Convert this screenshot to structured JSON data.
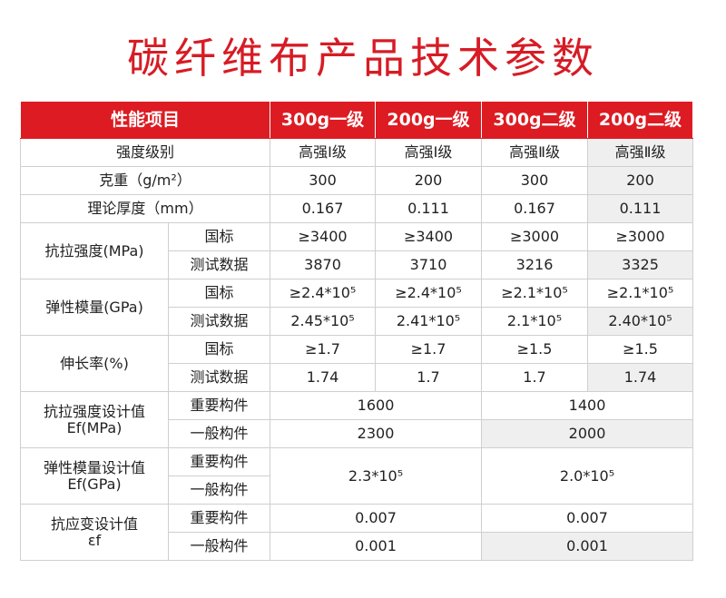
{
  "title": "碳纤维布产品技术参数",
  "header": {
    "item": "性能项目",
    "cols": [
      "300g一级",
      "200g一级",
      "300g二级",
      "200g二级"
    ]
  },
  "rows": {
    "grade": {
      "label": "强度级别",
      "values": [
        "高强Ⅰ级",
        "高强Ⅰ级",
        "高强Ⅱ级",
        "高强Ⅱ级"
      ]
    },
    "weight": {
      "label": "克重（g/m²）",
      "values": [
        "300",
        "200",
        "300",
        "200"
      ]
    },
    "thickness": {
      "label": "理论厚度（mm）",
      "values": [
        "0.167",
        "0.111",
        "0.167",
        "0.111"
      ]
    },
    "tensile": {
      "label": "抗拉强度(MPa)",
      "std_label": "国标",
      "std": [
        "≥3400",
        "≥3400",
        "≥3000",
        "≥3000"
      ],
      "test_label": "测试数据",
      "test": [
        "3870",
        "3710",
        "3216",
        "3325"
      ]
    },
    "modulus": {
      "label": "弹性模量(GPa)",
      "std_label": "国标",
      "std": [
        "≥2.4*10⁵",
        "≥2.4*10⁵",
        "≥2.1*10⁵",
        "≥2.1*10⁵"
      ],
      "test_label": "测试数据",
      "test": [
        "2.45*10⁵",
        "2.41*10⁵",
        "2.1*10⁵",
        "2.40*10⁵"
      ]
    },
    "elongation": {
      "label": "伸长率(%)",
      "std_label": "国标",
      "std": [
        "≥1.7",
        "≥1.7",
        "≥1.5",
        "≥1.5"
      ],
      "test_label": "测试数据",
      "test": [
        "1.74",
        "1.7",
        "1.7",
        "1.74"
      ]
    },
    "tensile_design": {
      "label_line1": "抗拉强度设计值",
      "label_line2": "Ef(MPa)",
      "important_label": "重要构件",
      "important": [
        "1600",
        "1400"
      ],
      "general_label": "一般构件",
      "general": [
        "2300",
        "2000"
      ]
    },
    "modulus_design": {
      "label_line1": "弹性模量设计值",
      "label_line2": "Ef(GPa)",
      "important_label": "重要构件",
      "general_label": "一般构件",
      "values": [
        "2.3*10⁵",
        "2.0*10⁵"
      ]
    },
    "strain_design": {
      "label_line1": "抗应变设计值",
      "label_line2": "εf",
      "important_label": "重要构件",
      "important": [
        "0.007",
        "0.007"
      ],
      "general_label": "一般构件",
      "general": [
        "0.001",
        "0.001"
      ]
    }
  },
  "colors": {
    "accent": "#dd1b22",
    "title": "#d61c25",
    "shade": "#efefef",
    "border": "#cfcfcf"
  }
}
